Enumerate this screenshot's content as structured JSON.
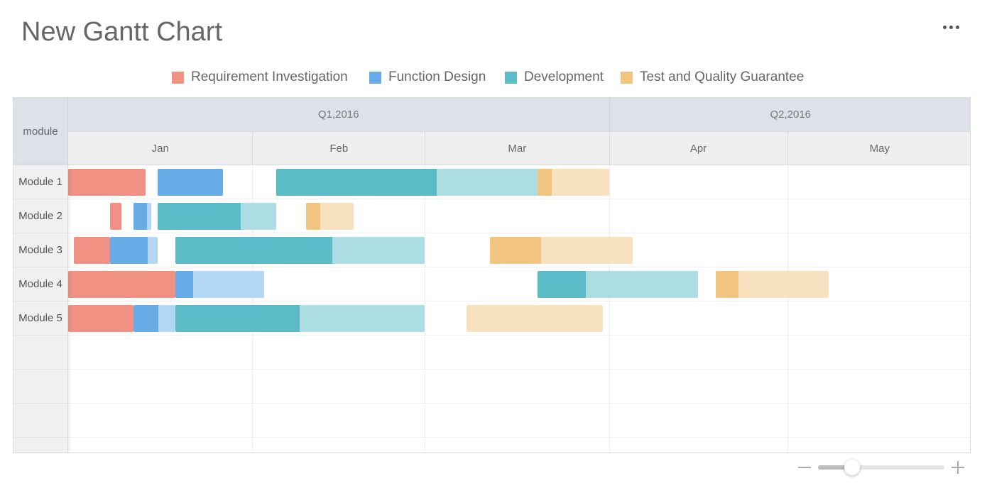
{
  "title": "New Gantt Chart",
  "menu_icon": "more-horizontal-icon",
  "chart_data": {
    "type": "gantt",
    "legend": [
      {
        "name": "Requirement Investigation",
        "color": "#f09183",
        "light_color": "#f7c3bb"
      },
      {
        "name": "Function Design",
        "color": "#67ace7",
        "light_color": "#b3d6f3"
      },
      {
        "name": "Development",
        "color": "#5bbcc8",
        "light_color": "#acdde3"
      },
      {
        "name": "Test and Quality Guarantee",
        "color": "#f1c47f",
        "light_color": "#f8e1bf"
      }
    ],
    "corner_label": "module",
    "quarters": [
      {
        "label": "Q1,2016",
        "start": "2016-01-01",
        "end": "2016-04-01"
      },
      {
        "label": "Q2,2016",
        "start": "2016-04-01",
        "end": "2016-06-01"
      }
    ],
    "months": [
      {
        "label": "Jan",
        "start": "2016-01-01",
        "end": "2016-02-01"
      },
      {
        "label": "Feb",
        "start": "2016-02-01",
        "end": "2016-03-01"
      },
      {
        "label": "Mar",
        "start": "2016-03-01",
        "end": "2016-04-01"
      },
      {
        "label": "Apr",
        "start": "2016-04-01",
        "end": "2016-05-01"
      },
      {
        "label": "May",
        "start": "2016-05-01",
        "end": "2016-06-01"
      }
    ],
    "rows": [
      {
        "label": "Module 1",
        "tasks": [
          {
            "phase": 0,
            "start": "2016-01-01",
            "end": "2016-01-14",
            "progress": 1
          },
          {
            "phase": 1,
            "start": "2016-01-16",
            "end": "2016-01-27",
            "progress": 1
          },
          {
            "phase": 2,
            "start": "2016-02-05",
            "end": "2016-03-21",
            "progress": 0.6
          },
          {
            "phase": 3,
            "start": "2016-03-20",
            "end": "2016-04-01",
            "progress": 0.2
          }
        ]
      },
      {
        "label": "Module 2",
        "tasks": [
          {
            "phase": 0,
            "start": "2016-01-08",
            "end": "2016-01-10",
            "progress": 1
          },
          {
            "phase": 1,
            "start": "2016-01-12",
            "end": "2016-01-15",
            "progress": 0.75
          },
          {
            "phase": 2,
            "start": "2016-01-16",
            "end": "2016-02-05",
            "progress": 0.7
          },
          {
            "phase": 3,
            "start": "2016-02-10",
            "end": "2016-02-18",
            "progress": 0.3
          }
        ]
      },
      {
        "label": "Module 3",
        "tasks": [
          {
            "phase": 0,
            "start": "2016-01-02",
            "end": "2016-01-08",
            "progress": 1
          },
          {
            "phase": 1,
            "start": "2016-01-08",
            "end": "2016-01-16",
            "progress": 0.8
          },
          {
            "phase": 2,
            "start": "2016-01-19",
            "end": "2016-03-01",
            "progress": 0.63
          },
          {
            "phase": 3,
            "start": "2016-03-12",
            "end": "2016-04-05",
            "progress": 0.36
          }
        ]
      },
      {
        "label": "Module 4",
        "tasks": [
          {
            "phase": 0,
            "start": "2016-01-01",
            "end": "2016-01-19",
            "progress": 1
          },
          {
            "phase": 1,
            "start": "2016-01-19",
            "end": "2016-02-03",
            "progress": 0.2
          },
          {
            "phase": 2,
            "start": "2016-03-20",
            "end": "2016-04-16",
            "progress": 0.3
          },
          {
            "phase": 3,
            "start": "2016-04-19",
            "end": "2016-05-08",
            "progress": 0.2
          }
        ]
      },
      {
        "label": "Module 5",
        "tasks": [
          {
            "phase": 0,
            "start": "2016-01-01",
            "end": "2016-01-12",
            "progress": 1
          },
          {
            "phase": 1,
            "start": "2016-01-12",
            "end": "2016-01-19",
            "progress": 0.6
          },
          {
            "phase": 2,
            "start": "2016-01-19",
            "end": "2016-03-01",
            "progress": 0.5
          },
          {
            "phase": 3,
            "start": "2016-03-08",
            "end": "2016-03-31",
            "progress": 0
          }
        ]
      },
      {
        "label": "",
        "tasks": []
      },
      {
        "label": "",
        "tasks": []
      },
      {
        "label": "",
        "tasks": []
      },
      {
        "label": "",
        "tasks": []
      }
    ],
    "timeline_start": "2016-01-01",
    "timeline_end": "2016-06-01",
    "grid": true,
    "legend_position": "top-center"
  },
  "zoom": {
    "minus_icon": "zoom-out-icon",
    "plus_icon": "zoom-in-icon",
    "level": 0.27
  }
}
